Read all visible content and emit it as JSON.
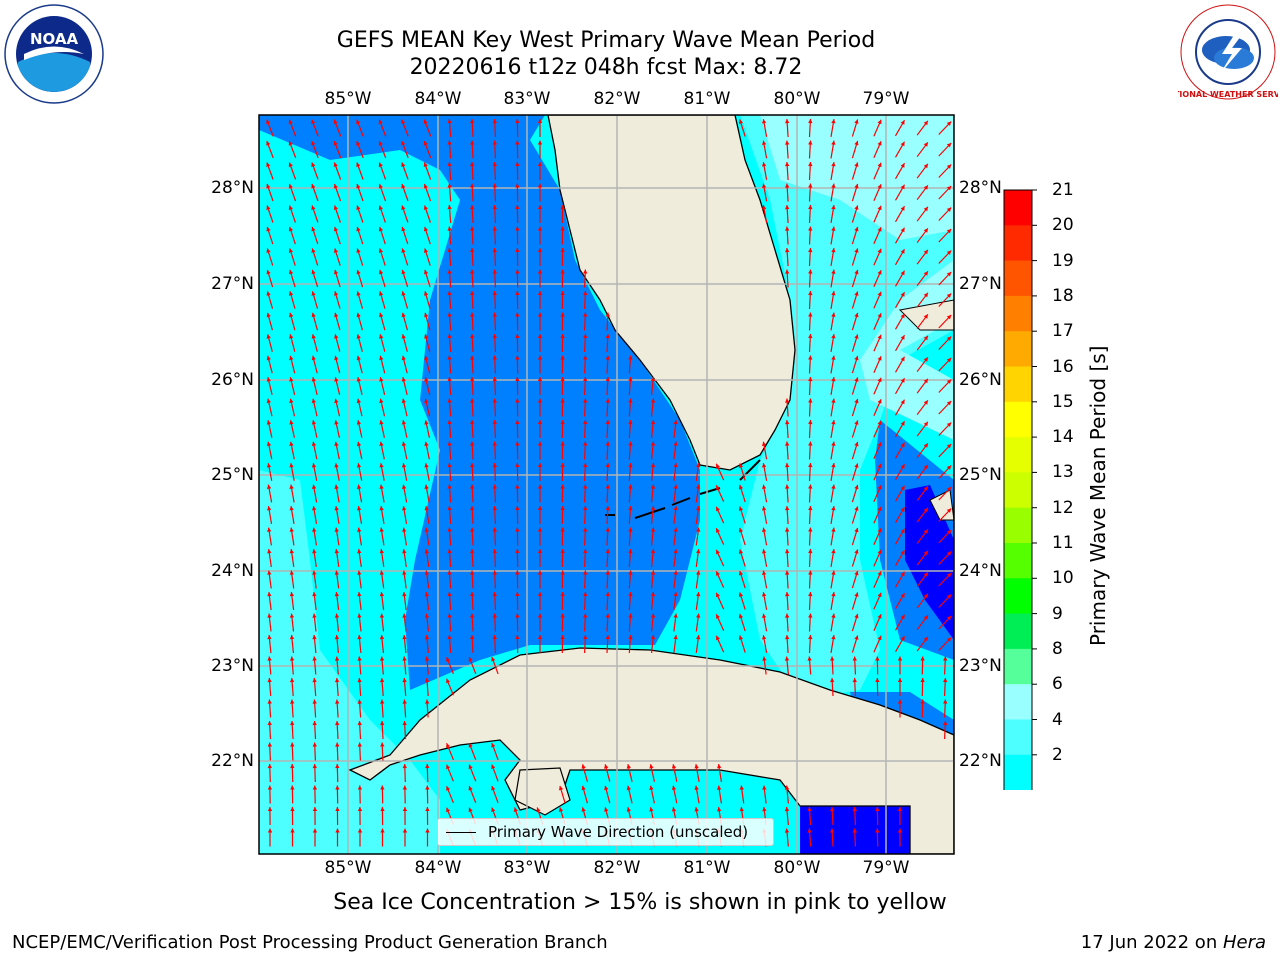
{
  "header": {
    "title_line1": "GEFS MEAN Key West Primary Wave Mean Period",
    "title_line2": "20220616 t12z 048h fcst   Max: 8.72"
  },
  "logos": {
    "noaa_text": "NOAA",
    "nws_text": "NATIONAL WEATHER SERVICE"
  },
  "map": {
    "lon_ticks": [
      "85°W",
      "84°W",
      "83°W",
      "82°W",
      "81°W",
      "80°W",
      "79°W"
    ],
    "lat_ticks": [
      "28°N",
      "27°N",
      "26°N",
      "25°N",
      "24°N",
      "23°N",
      "22°N"
    ],
    "legend_label": "Primary Wave Direction (unscaled)",
    "colors": {
      "land": "#efecdc",
      "c2_4": "#0080ff",
      "c4_6": "#00ffff",
      "c6_8": "#4dffff",
      "c8_9": "#99ffff",
      "below": "#0000ff",
      "arrow": "#ff0000",
      "grid": "#b4b4b4"
    }
  },
  "colorbar": {
    "title": "Primary Wave Mean Period [s]",
    "labels": [
      "21",
      "20",
      "19",
      "18",
      "17",
      "16",
      "15",
      "14",
      "13",
      "12",
      "11",
      "10",
      "9",
      "8",
      "6",
      "4",
      "2"
    ],
    "colors": [
      "#ff0000",
      "#ff2a00",
      "#ff5500",
      "#ff8000",
      "#ffaa00",
      "#ffd400",
      "#ffff00",
      "#e6ff00",
      "#ccff00",
      "#99ff00",
      "#55ff00",
      "#00ff00",
      "#00ee55",
      "#55ff99",
      "#99ffff",
      "#4dffff",
      "#00ffff",
      "#0080ff"
    ],
    "extend_color": "#0000ff"
  },
  "caption": "Sea Ice Concentration > 15% is shown in pink to yellow",
  "footer": {
    "left": "NCEP/EMC/Verification Post Processing Product Generation Branch",
    "right_date": "17 Jun 2022 on ",
    "right_host": "Hera"
  }
}
